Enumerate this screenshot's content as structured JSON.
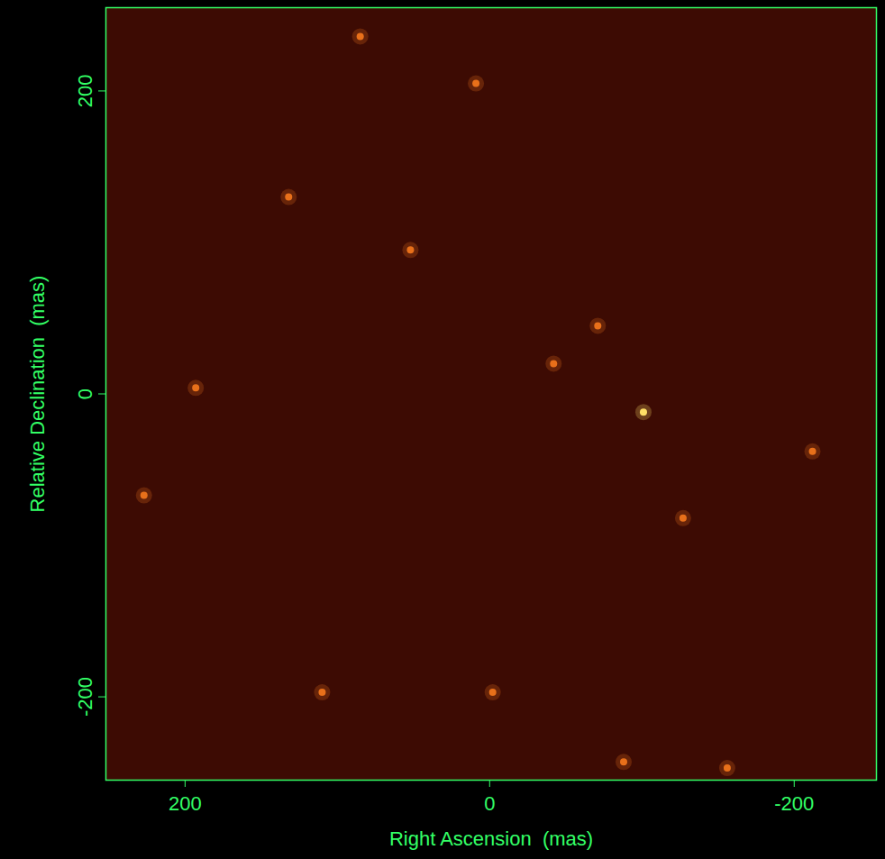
{
  "chart_data": {
    "type": "scatter",
    "xlabel": "Right Ascension  (mas)",
    "ylabel": "Relative Declination  (mas)",
    "x": [
      -101,
      -71,
      -42,
      193,
      227,
      52,
      132,
      9,
      85,
      -127,
      -212,
      110,
      -88,
      -156,
      -2
    ],
    "y": [
      -12,
      45,
      20,
      4,
      -67,
      95,
      130,
      205,
      236,
      -82,
      -38,
      -197,
      -243,
      -247,
      -197
    ],
    "colors": [
      "#ffe066",
      "#e8701a",
      "#e8701a",
      "#e8701a",
      "#e8701a",
      "#e8701a",
      "#e8701a",
      "#e8701a",
      "#e8701a",
      "#e8701a",
      "#e8701a",
      "#e8701a",
      "#e8701a",
      "#e8701a",
      "#e8701a"
    ],
    "xlim": [
      252,
      -254
    ],
    "ylim": [
      -255,
      255
    ],
    "xticks": [
      200,
      0,
      -200
    ],
    "yticks": [
      -200,
      0,
      200
    ]
  }
}
